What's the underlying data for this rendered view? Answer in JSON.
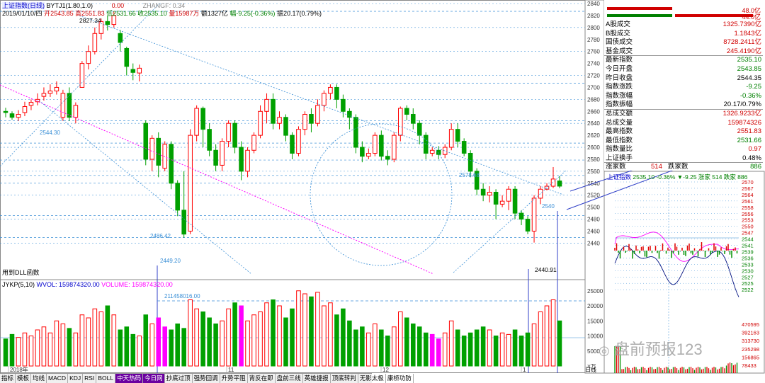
{
  "header": {
    "title": "上证指数(日线)",
    "indicator": "BYTJ1(1.80,1.0)",
    "indicator_value": "0.00",
    "zhangf": "ZHANGF: 0.34",
    "date": "2019/01/10/四",
    "open": "开2543.85",
    "high": "高2551.83",
    "low": "低2531.66",
    "close": "收2535.10",
    "volume": "量15987万",
    "amount": "额1327亿",
    "change": "幅-9.25(-0.36%)",
    "amplitude": "振20.17(0.79%)"
  },
  "annotations": {
    "high": "2827.34",
    "low1": "2449.20",
    "low2": "2440.91",
    "lvl1": "2544.30",
    "lvl2": "2486.42",
    "lvl3": "2578.68",
    "lvl4": "2540",
    "formula_note": "用到DLL函数",
    "volume_peak": "211458016.00"
  },
  "volume_header": {
    "name": "JYKP(5,10)",
    "wvol": "WVOL: 159874320.00",
    "vol": "VOLUME: 159874320.00"
  },
  "axis": {
    "price_ticks": [
      "2840",
      "2820",
      "2800",
      "2780",
      "2760",
      "2740",
      "2720",
      "2700",
      "2680",
      "2660",
      "2640",
      "2620",
      "2600",
      "2580",
      "2560",
      "2540",
      "2520",
      "2500",
      "2480",
      "2460",
      "2440"
    ],
    "vol_ticks": [
      "25000",
      "20000",
      "15000",
      "10000",
      "5000"
    ],
    "vol_unit": "X万",
    "x_labels": [
      "2018年",
      "11",
      "12",
      "1"
    ],
    "period_label": "日线"
  },
  "quote": {
    "bar1_value": "48.0亿",
    "bar2_value": "44.0亿",
    "rows": [
      {
        "label": "A股成交",
        "value": "1325.7390亿",
        "color": "#d00000"
      },
      {
        "label": "B股成交",
        "value": "1.1843亿",
        "color": "#d00000"
      },
      {
        "label": "国债成交",
        "value": "8728.2411亿",
        "color": "#d00000"
      },
      {
        "label": "基金成交",
        "value": "245.4190亿",
        "color": "#d00000"
      },
      {
        "label": "最新指数",
        "value": "2535.10",
        "color": "#008000"
      },
      {
        "label": "今日开盘",
        "value": "2543.85",
        "color": "#008000"
      },
      {
        "label": "昨日收盘",
        "value": "2544.35",
        "color": "#000000"
      },
      {
        "label": "指数涨跌",
        "value": "-9.25",
        "color": "#008000"
      },
      {
        "label": "指数涨幅",
        "value": "-0.36%",
        "color": "#008000"
      },
      {
        "label": "指数振幅",
        "value": "20.17/0.79%",
        "color": "#000000"
      },
      {
        "label": "总成交额",
        "value": "1326.9233亿",
        "color": "#d00000"
      },
      {
        "label": "总成交量",
        "value": "159874326",
        "color": "#d00000"
      },
      {
        "label": "最高指数",
        "value": "2551.83",
        "color": "#d00000"
      },
      {
        "label": "最低指数",
        "value": "2531.66",
        "color": "#008000"
      },
      {
        "label": "指数量比",
        "value": "0.97",
        "color": "#d00000"
      },
      {
        "label": "上证换手",
        "value": "0.48%",
        "color": "#000000"
      }
    ],
    "updown": {
      "up_label": "涨家数",
      "up": "514",
      "down_label": "跌家数",
      "down": "886"
    }
  },
  "intraday": {
    "title": "上证指数",
    "summary": "2535.10 -0.36% ▼-9.25 涨家 514 跌家 886",
    "price_ticks": [
      "2570",
      "2567",
      "2564",
      "2561",
      "2558",
      "2556",
      "2553",
      "2550",
      "2547",
      "2544",
      "2541",
      "2539",
      "2536",
      "2533",
      "2530",
      "2527",
      "2525",
      "2522"
    ],
    "vol_ticks": [
      "470595",
      "392163",
      "313730",
      "235298",
      "156865",
      "78433"
    ]
  },
  "tabs": [
    "指标",
    "模板",
    "均线",
    "MACD",
    "KDJ",
    "RSI",
    "BOLL",
    "中天热码",
    "今日网",
    "抄底过顶",
    "强势回调",
    "升势平阻",
    "背反在即",
    "盘前三线",
    "英雄捷报",
    "顶底转判",
    "无影太极",
    "康桥功防"
  ],
  "watermark": "盘前预报123",
  "colors": {
    "up": "#ff0000",
    "down": "#00a000",
    "magenta": "#ff00ff",
    "guide": "#3a8fd6"
  }
}
